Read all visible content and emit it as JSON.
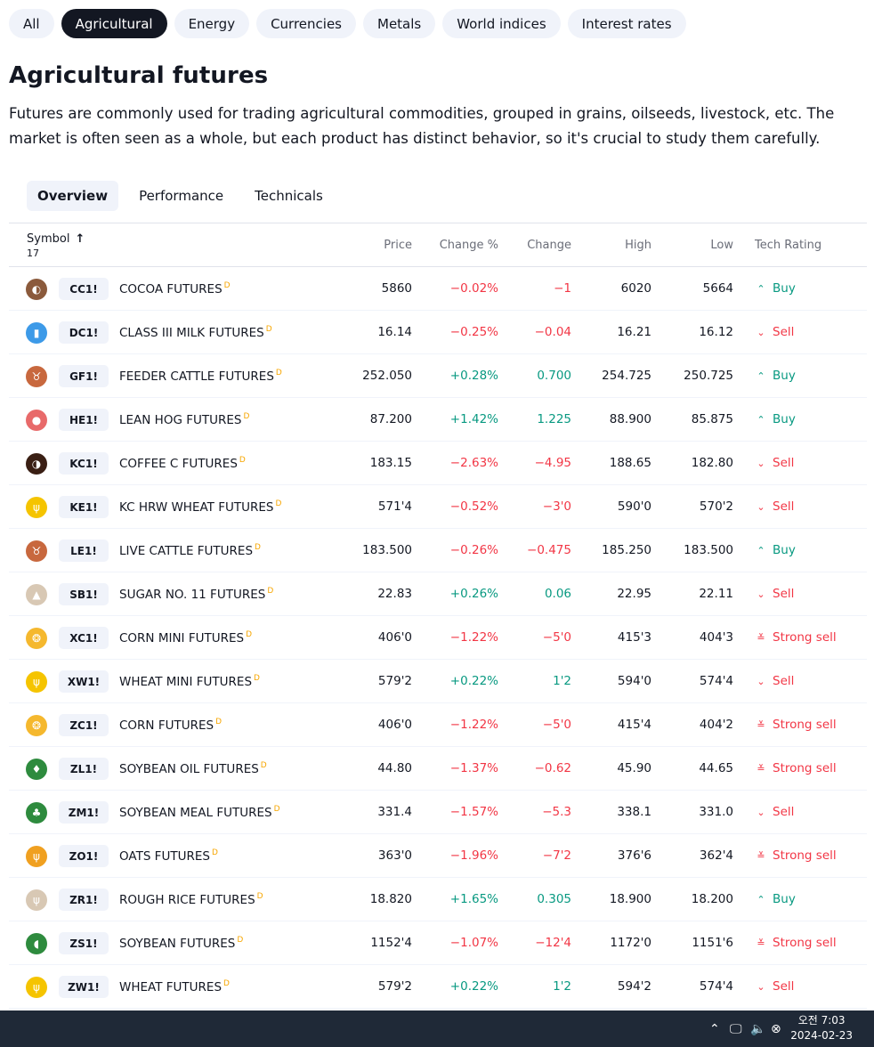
{
  "categories": [
    "All",
    "Agricultural",
    "Energy",
    "Currencies",
    "Metals",
    "World indices",
    "Interest rates"
  ],
  "active_category": 1,
  "title": "Agricultural futures",
  "description": "Futures are commonly used for trading agricultural commodities, grouped in grains, oilseeds, livestock, etc. The market is often seen as a whole, but each product has distinct behavior, so it's crucial to study them carefully.",
  "tabs": [
    "Overview",
    "Performance",
    "Technicals"
  ],
  "table": {
    "headers": {
      "symbol": "Symbol",
      "count": "17",
      "price": "Price",
      "change_pct": "Change %",
      "change": "Change",
      "high": "High",
      "low": "Low",
      "rating": "Tech Rating"
    },
    "rows": [
      {
        "ticker": "CC1!",
        "name": "COCOA FUTURES",
        "price": "5860",
        "pct": "−0.02%",
        "chg": "−1",
        "high": "6020",
        "low": "5664",
        "rating": "Buy",
        "up": false,
        "logo_color": "#8b5a3c",
        "logo_icon": "cocoa-bean-icon",
        "logo_glyph": "◐"
      },
      {
        "ticker": "DC1!",
        "name": "CLASS III MILK FUTURES",
        "price": "16.14",
        "pct": "−0.25%",
        "chg": "−0.04",
        "high": "16.21",
        "low": "16.12",
        "rating": "Sell",
        "up": false,
        "logo_color": "#3d9ae8",
        "logo_icon": "milk-bottle-icon",
        "logo_glyph": "▮"
      },
      {
        "ticker": "GF1!",
        "name": "FEEDER CATTLE FUTURES",
        "price": "252.050",
        "pct": "+0.28%",
        "chg": "0.700",
        "high": "254.725",
        "low": "250.725",
        "rating": "Buy",
        "up": true,
        "logo_color": "#c8683e",
        "logo_icon": "cattle-head-icon",
        "logo_glyph": "♉"
      },
      {
        "ticker": "HE1!",
        "name": "LEAN HOG FUTURES",
        "price": "87.200",
        "pct": "+1.42%",
        "chg": "1.225",
        "high": "88.900",
        "low": "85.875",
        "rating": "Buy",
        "up": true,
        "logo_color": "#e86a6a",
        "logo_icon": "pig-head-icon",
        "logo_glyph": "●"
      },
      {
        "ticker": "KC1!",
        "name": "COFFEE C FUTURES",
        "price": "183.15",
        "pct": "−2.63%",
        "chg": "−4.95",
        "high": "188.65",
        "low": "182.80",
        "rating": "Sell",
        "up": false,
        "logo_color": "#3a1f14",
        "logo_icon": "coffee-bean-icon",
        "logo_glyph": "◑"
      },
      {
        "ticker": "KE1!",
        "name": "KC HRW WHEAT FUTURES",
        "price": "571'4",
        "pct": "−0.52%",
        "chg": "−3'0",
        "high": "590'0",
        "low": "570'2",
        "rating": "Sell",
        "up": false,
        "logo_color": "#f5c400",
        "logo_icon": "wheat-icon",
        "logo_glyph": "ψ"
      },
      {
        "ticker": "LE1!",
        "name": "LIVE CATTLE FUTURES",
        "price": "183.500",
        "pct": "−0.26%",
        "chg": "−0.475",
        "high": "185.250",
        "low": "183.500",
        "rating": "Buy",
        "up": false,
        "logo_color": "#c8683e",
        "logo_icon": "cattle-head-icon",
        "logo_glyph": "♉"
      },
      {
        "ticker": "SB1!",
        "name": "SUGAR NO. 11 FUTURES",
        "price": "22.83",
        "pct": "+0.26%",
        "chg": "0.06",
        "high": "22.95",
        "low": "22.11",
        "rating": "Sell",
        "up": true,
        "logo_color": "#d8c8b4",
        "logo_icon": "sugar-pile-icon",
        "logo_glyph": "▲"
      },
      {
        "ticker": "XC1!",
        "name": "CORN MINI FUTURES",
        "price": "406'0",
        "pct": "−1.22%",
        "chg": "−5'0",
        "high": "415'3",
        "low": "404'3",
        "rating": "Strong sell",
        "up": false,
        "logo_color": "#f5b82e",
        "logo_icon": "corn-icon",
        "logo_glyph": "❂"
      },
      {
        "ticker": "XW1!",
        "name": "WHEAT MINI FUTURES",
        "price": "579'2",
        "pct": "+0.22%",
        "chg": "1'2",
        "high": "594'0",
        "low": "574'4",
        "rating": "Sell",
        "up": true,
        "logo_color": "#f5c400",
        "logo_icon": "wheat-icon",
        "logo_glyph": "ψ"
      },
      {
        "ticker": "ZC1!",
        "name": "CORN FUTURES",
        "price": "406'0",
        "pct": "−1.22%",
        "chg": "−5'0",
        "high": "415'4",
        "low": "404'2",
        "rating": "Strong sell",
        "up": false,
        "logo_color": "#f5b82e",
        "logo_icon": "corn-icon",
        "logo_glyph": "❂"
      },
      {
        "ticker": "ZL1!",
        "name": "SOYBEAN OIL FUTURES",
        "price": "44.80",
        "pct": "−1.37%",
        "chg": "−0.62",
        "high": "45.90",
        "low": "44.65",
        "rating": "Strong sell",
        "up": false,
        "logo_color": "#2e8b3e",
        "logo_icon": "oil-drop-icon",
        "logo_glyph": "♦"
      },
      {
        "ticker": "ZM1!",
        "name": "SOYBEAN MEAL FUTURES",
        "price": "331.4",
        "pct": "−1.57%",
        "chg": "−5.3",
        "high": "338.1",
        "low": "331.0",
        "rating": "Sell",
        "up": false,
        "logo_color": "#2e8b3e",
        "logo_icon": "soy-leaf-icon",
        "logo_glyph": "♣"
      },
      {
        "ticker": "ZO1!",
        "name": "OATS FUTURES",
        "price": "363'0",
        "pct": "−1.96%",
        "chg": "−7'2",
        "high": "376'6",
        "low": "362'4",
        "rating": "Strong sell",
        "up": false,
        "logo_color": "#f0a020",
        "logo_icon": "oats-icon",
        "logo_glyph": "ψ"
      },
      {
        "ticker": "ZR1!",
        "name": "ROUGH RICE FUTURES",
        "price": "18.820",
        "pct": "+1.65%",
        "chg": "0.305",
        "high": "18.900",
        "low": "18.200",
        "rating": "Buy",
        "up": true,
        "logo_color": "#d8c8b4",
        "logo_icon": "rice-icon",
        "logo_glyph": "ψ"
      },
      {
        "ticker": "ZS1!",
        "name": "SOYBEAN FUTURES",
        "price": "1152'4",
        "pct": "−1.07%",
        "chg": "−12'4",
        "high": "1172'0",
        "low": "1151'6",
        "rating": "Strong sell",
        "up": false,
        "logo_color": "#2e8b3e",
        "logo_icon": "soybean-icon",
        "logo_glyph": "◖"
      },
      {
        "ticker": "ZW1!",
        "name": "WHEAT FUTURES",
        "price": "579'2",
        "pct": "+0.22%",
        "chg": "1'2",
        "high": "594'2",
        "low": "574'4",
        "rating": "Sell",
        "up": true,
        "logo_color": "#f5c400",
        "logo_icon": "wheat-icon",
        "logo_glyph": "ψ"
      }
    ]
  },
  "delay_marker": "D",
  "colors": {
    "up": "#089981",
    "down": "#f23645",
    "chip_bg": "#f0f3fa",
    "chip_active_bg": "#131722"
  },
  "taskbar": {
    "time": "오전 7:03",
    "date": "2024-02-23"
  }
}
